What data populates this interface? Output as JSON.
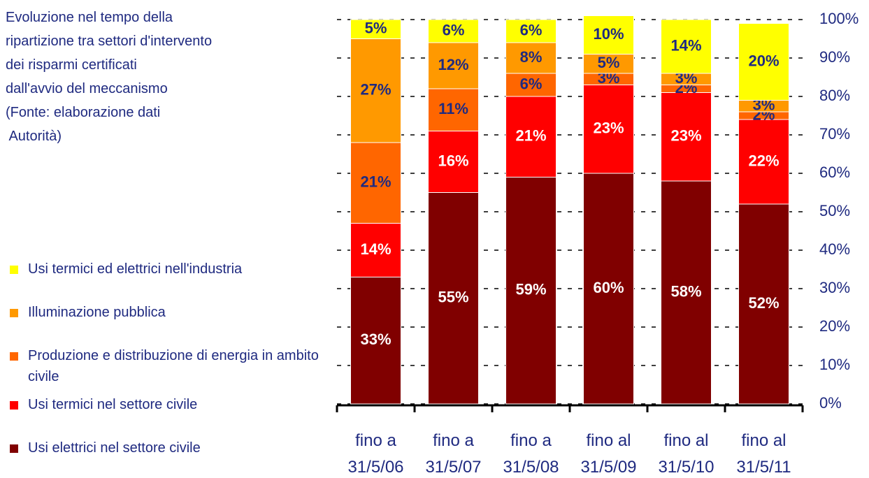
{
  "chart_data": {
    "type": "bar",
    "stacked": true,
    "title": [
      "Evoluzione nel tempo della",
      "ripartizione tra settori d'intervento",
      "dei risparmi certificati",
      "dall'avvio del meccanismo",
      "(Fonte: elaborazione dati",
      " Autorità)"
    ],
    "categories": [
      "fino a 31/5/06",
      "fino a 31/5/07",
      "fino a 31/5/08",
      "fino al 31/5/09",
      "fino al 31/5/10",
      "fino al 31/5/11"
    ],
    "series": [
      {
        "name": "Usi elettrici nel settore civile",
        "color": "#800000",
        "label_color": "#ffffff",
        "values": [
          33,
          55,
          59,
          60,
          58,
          52
        ],
        "value_labels": [
          "33%",
          "55%",
          "59%",
          "60%",
          "58%",
          "52%"
        ]
      },
      {
        "name": "Usi termici nel settore civile",
        "color": "#ff0000",
        "label_color": "#ffffff",
        "values": [
          14,
          16,
          21,
          23,
          23,
          22
        ],
        "value_labels": [
          "14%",
          "16%",
          "21%",
          "23%",
          "23%",
          "22%"
        ]
      },
      {
        "name": "Produzione e distribuzione di energia in ambito civile",
        "color": "#ff6600",
        "label_color": "#1f2a80",
        "values": [
          21,
          11,
          6,
          3,
          2,
          2
        ],
        "value_labels": [
          "21%",
          "11%",
          "6%",
          "3%",
          "2%",
          "2%"
        ]
      },
      {
        "name": "Illuminazione pubblica",
        "color": "#ff9900",
        "label_color": "#1f2a80",
        "values": [
          27,
          12,
          8,
          5,
          3,
          3
        ],
        "value_labels": [
          "27%",
          "12%",
          "8%",
          "5%",
          "3%",
          "3%"
        ]
      },
      {
        "name": "Usi termici ed elettrici nell'industria",
        "color": "#ffff00",
        "label_color": "#1f2a80",
        "values": [
          5,
          6,
          6,
          10,
          14,
          20
        ],
        "value_labels": [
          "5%",
          "6%",
          "6%",
          "10%",
          "14%",
          "20%"
        ]
      }
    ],
    "ylim": [
      0,
      100
    ],
    "yticks": [
      {
        "value": 0,
        "label": "0%"
      },
      {
        "value": 10,
        "label": "10%"
      },
      {
        "value": 20,
        "label": "20%"
      },
      {
        "value": 30,
        "label": "30%"
      },
      {
        "value": 40,
        "label": "40%"
      },
      {
        "value": 50,
        "label": "50%"
      },
      {
        "value": 60,
        "label": "60%"
      },
      {
        "value": 70,
        "label": "70%"
      },
      {
        "value": 80,
        "label": "80%"
      },
      {
        "value": 90,
        "label": "90%"
      },
      {
        "value": 100,
        "label": "100%"
      }
    ],
    "grid": true,
    "y_axis_side": "right",
    "legend": "left"
  }
}
